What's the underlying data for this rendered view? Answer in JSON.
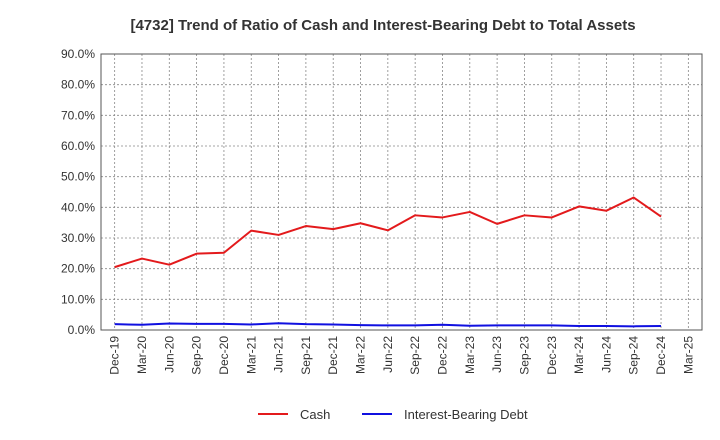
{
  "chart_data": {
    "type": "line",
    "title": "[4732]  Trend of Ratio of Cash and Interest-Bearing Debt to Total Assets",
    "xlabel": "",
    "ylabel": "",
    "ylim": [
      0,
      90
    ],
    "y_ticks": [
      "0.0%",
      "10.0%",
      "20.0%",
      "30.0%",
      "40.0%",
      "50.0%",
      "60.0%",
      "70.0%",
      "80.0%",
      "90.0%"
    ],
    "categories": [
      "Dec-19",
      "Mar-20",
      "Jun-20",
      "Sep-20",
      "Dec-20",
      "Mar-21",
      "Jun-21",
      "Sep-21",
      "Dec-21",
      "Mar-22",
      "Jun-22",
      "Sep-22",
      "Dec-22",
      "Mar-23",
      "Jun-23",
      "Sep-23",
      "Dec-23",
      "Mar-24",
      "Jun-24",
      "Sep-24",
      "Dec-24",
      "Mar-25"
    ],
    "grid": true,
    "legend_position": "bottom",
    "series": [
      {
        "name": "Cash",
        "color": "#e31a1c",
        "values": [
          20.5,
          23.3,
          21.3,
          24.9,
          25.2,
          32.4,
          31.0,
          33.9,
          32.9,
          34.8,
          32.5,
          37.4,
          36.7,
          38.5,
          34.6,
          37.4,
          36.7,
          40.3,
          38.9,
          43.2,
          37.0,
          null
        ]
      },
      {
        "name": "Interest-Bearing Debt",
        "color": "#1010e0",
        "values": [
          1.9,
          1.7,
          2.1,
          2.0,
          2.0,
          1.8,
          2.2,
          1.9,
          1.8,
          1.6,
          1.5,
          1.5,
          1.7,
          1.4,
          1.5,
          1.5,
          1.5,
          1.3,
          1.3,
          1.2,
          1.3,
          null
        ]
      }
    ]
  }
}
